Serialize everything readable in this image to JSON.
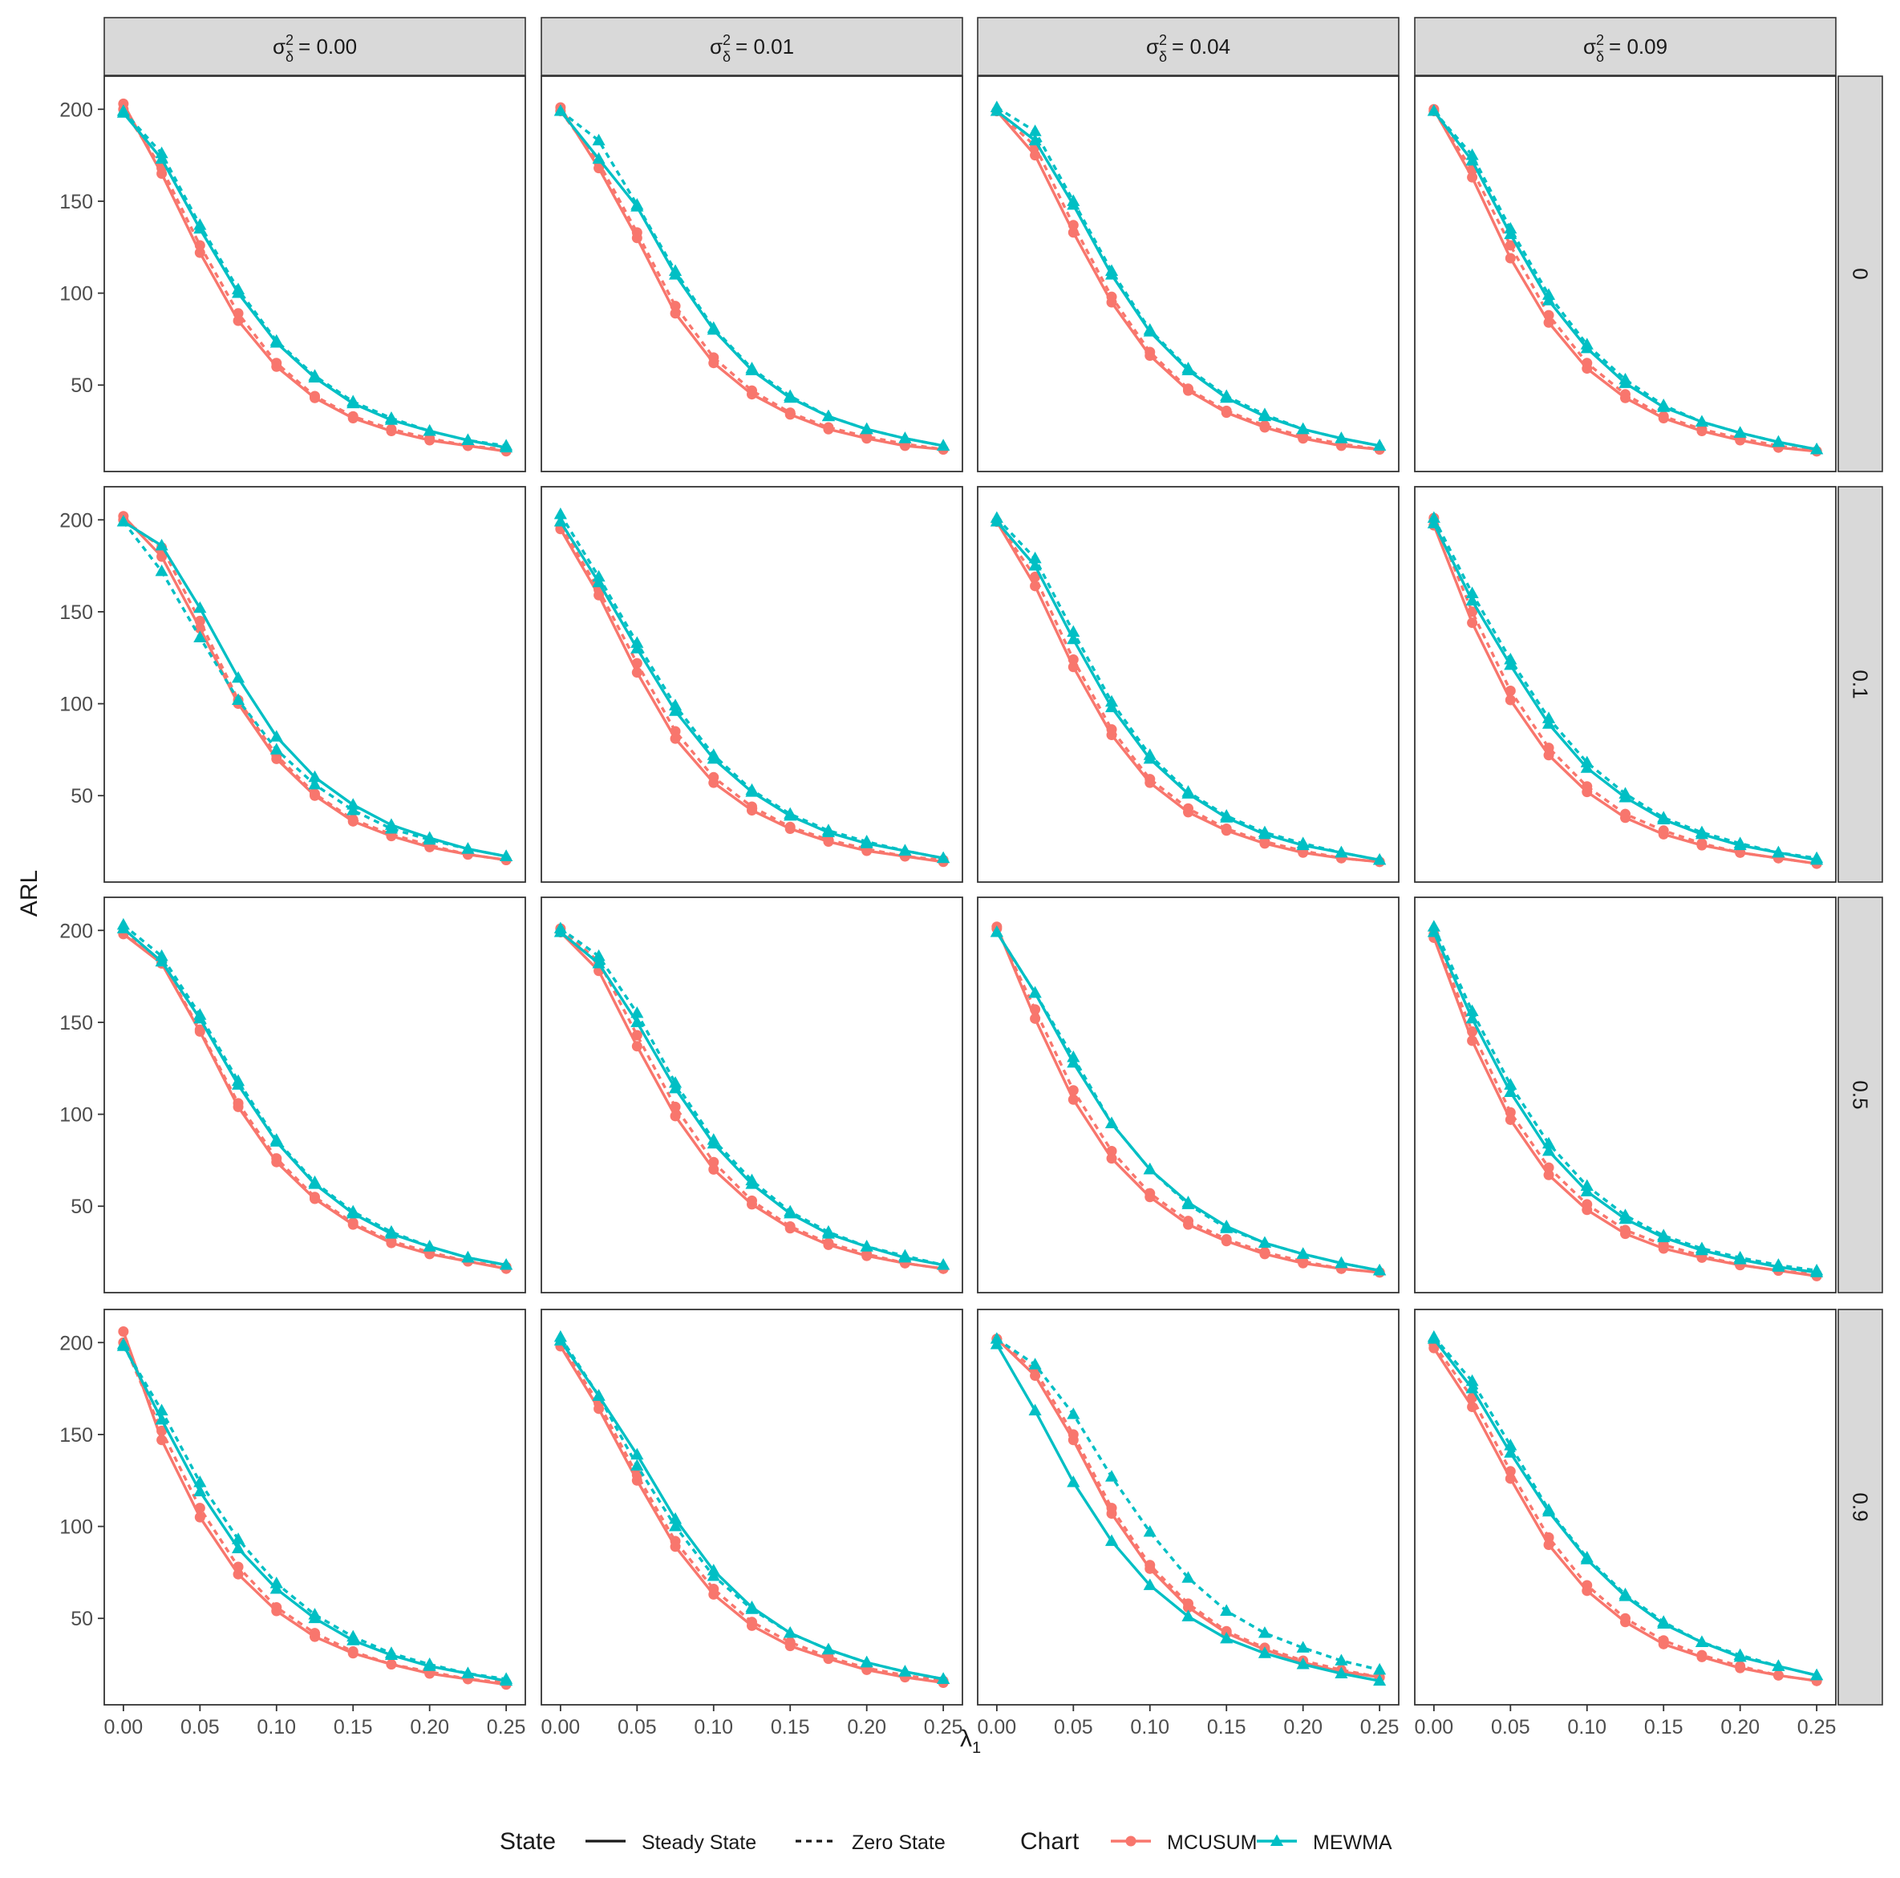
{
  "chart_data": {
    "type": "line",
    "facet_col_header_prefix": "σ",
    "facet_col_header_sup": "2",
    "facet_col_header_sub": "δ",
    "facet_col_values": [
      "= 0.00",
      "= 0.01",
      "= 0.04",
      "= 0.09"
    ],
    "facet_row_labels": [
      "0",
      "0.1",
      "0.5",
      "0.9"
    ],
    "x_values": [
      0,
      0.025,
      0.05,
      0.075,
      0.1,
      0.125,
      0.15,
      0.175,
      0.2,
      0.225,
      0.25
    ],
    "x_ticks": [
      0,
      0.05,
      0.1,
      0.15,
      0.2,
      0.25
    ],
    "x_tick_labels": [
      "0.00",
      "0.05",
      "0.10",
      "0.15",
      "0.20",
      "0.25"
    ],
    "y_ticks": [
      50,
      100,
      150,
      200
    ],
    "y_tick_labels": [
      "50",
      "100",
      "150",
      "200"
    ],
    "xlim": [
      -0.0125,
      0.2625
    ],
    "ylim": [
      3,
      218
    ],
    "xlabel_symbol": "λ",
    "xlabel_sub": "1",
    "ylabel": "ARL",
    "legend": {
      "state_title": "State",
      "state_items": [
        "Steady State",
        "Zero State"
      ],
      "chart_title": "Chart",
      "chart_items": [
        "MCUSUM",
        "MEWMA"
      ]
    },
    "colors": {
      "MCUSUM": "#F8766D",
      "MEWMA": "#00BFC4"
    },
    "panels": [
      [
        {
          "MCUSUM_steady": [
            203,
            165,
            122,
            85,
            60,
            43,
            32,
            25,
            20,
            17,
            14
          ],
          "MCUSUM_zero": [
            200,
            168,
            126,
            89,
            62,
            44,
            33,
            26,
            21,
            17,
            15
          ],
          "MEWMA_steady": [
            198,
            173,
            135,
            100,
            73,
            54,
            40,
            31,
            25,
            20,
            16
          ],
          "MEWMA_zero": [
            199,
            176,
            137,
            102,
            74,
            55,
            41,
            32,
            25,
            20,
            17
          ]
        },
        {
          "MCUSUM_steady": [
            201,
            168,
            130,
            89,
            62,
            45,
            34,
            26,
            21,
            17,
            15
          ],
          "MCUSUM_zero": [
            199,
            171,
            133,
            93,
            65,
            47,
            35,
            27,
            22,
            18,
            15
          ],
          "MEWMA_steady": [
            199,
            173,
            147,
            110,
            80,
            58,
            43,
            33,
            26,
            21,
            17
          ],
          "MEWMA_zero": [
            199,
            183,
            148,
            112,
            81,
            59,
            44,
            33,
            26,
            21,
            17
          ]
        },
        {
          "MCUSUM_steady": [
            199,
            175,
            133,
            95,
            66,
            47,
            35,
            27,
            21,
            17,
            15
          ],
          "MCUSUM_zero": [
            199,
            180,
            137,
            98,
            68,
            48,
            36,
            28,
            22,
            18,
            15
          ],
          "MEWMA_steady": [
            199,
            183,
            148,
            110,
            79,
            58,
            43,
            33,
            26,
            21,
            17
          ],
          "MEWMA_zero": [
            201,
            188,
            150,
            112,
            80,
            59,
            44,
            34,
            26,
            21,
            17
          ]
        },
        {
          "MCUSUM_steady": [
            200,
            163,
            119,
            84,
            59,
            43,
            32,
            25,
            20,
            16,
            14
          ],
          "MCUSUM_zero": [
            199,
            167,
            126,
            88,
            62,
            45,
            33,
            26,
            21,
            17,
            14
          ],
          "MEWMA_steady": [
            199,
            172,
            132,
            96,
            70,
            51,
            38,
            30,
            24,
            19,
            15
          ],
          "MEWMA_zero": [
            199,
            175,
            135,
            99,
            72,
            53,
            39,
            30,
            24,
            19,
            15
          ]
        }
      ],
      [
        {
          "MCUSUM_steady": [
            202,
            180,
            141,
            100,
            70,
            50,
            36,
            28,
            22,
            18,
            15
          ],
          "MCUSUM_zero": [
            200,
            185,
            145,
            102,
            72,
            51,
            37,
            29,
            23,
            18,
            15
          ],
          "MEWMA_steady": [
            199,
            186,
            152,
            114,
            82,
            60,
            45,
            34,
            27,
            21,
            17
          ],
          "MEWMA_zero": [
            199,
            172,
            136,
            102,
            75,
            56,
            42,
            32,
            26,
            21,
            17
          ]
        },
        {
          "MCUSUM_steady": [
            195,
            159,
            117,
            81,
            57,
            42,
            32,
            25,
            20,
            17,
            14
          ],
          "MCUSUM_zero": [
            197,
            162,
            122,
            85,
            60,
            44,
            33,
            26,
            21,
            17,
            15
          ],
          "MEWMA_steady": [
            199,
            166,
            130,
            96,
            70,
            52,
            39,
            30,
            24,
            20,
            16
          ],
          "MEWMA_zero": [
            203,
            169,
            133,
            99,
            72,
            53,
            40,
            31,
            25,
            20,
            16
          ]
        },
        {
          "MCUSUM_steady": [
            199,
            164,
            120,
            83,
            57,
            41,
            31,
            24,
            19,
            16,
            14
          ],
          "MCUSUM_zero": [
            199,
            169,
            124,
            86,
            59,
            43,
            32,
            25,
            20,
            16,
            14
          ],
          "MEWMA_steady": [
            199,
            175,
            135,
            98,
            70,
            51,
            38,
            29,
            23,
            19,
            15
          ],
          "MEWMA_zero": [
            201,
            179,
            139,
            101,
            72,
            52,
            39,
            30,
            24,
            19,
            15
          ]
        },
        {
          "MCUSUM_steady": [
            197,
            144,
            102,
            72,
            52,
            38,
            29,
            23,
            19,
            16,
            13
          ],
          "MCUSUM_zero": [
            201,
            150,
            107,
            76,
            55,
            40,
            31,
            24,
            19,
            16,
            13
          ],
          "MEWMA_steady": [
            198,
            156,
            121,
            89,
            65,
            49,
            37,
            29,
            23,
            19,
            15
          ],
          "MEWMA_zero": [
            201,
            160,
            124,
            92,
            68,
            51,
            38,
            30,
            24,
            19,
            16
          ]
        }
      ],
      [
        {
          "MCUSUM_steady": [
            198,
            182,
            145,
            104,
            74,
            54,
            40,
            30,
            24,
            20,
            16
          ],
          "MCUSUM_zero": [
            199,
            183,
            146,
            106,
            76,
            55,
            41,
            31,
            25,
            20,
            17
          ],
          "MEWMA_steady": [
            201,
            183,
            152,
            116,
            85,
            62,
            46,
            35,
            28,
            22,
            18
          ],
          "MEWMA_zero": [
            203,
            186,
            154,
            118,
            86,
            63,
            47,
            36,
            28,
            22,
            18
          ]
        },
        {
          "MCUSUM_steady": [
            199,
            178,
            137,
            99,
            70,
            51,
            38,
            29,
            23,
            19,
            16
          ],
          "MCUSUM_zero": [
            201,
            183,
            143,
            104,
            74,
            53,
            39,
            30,
            24,
            19,
            16
          ],
          "MEWMA_steady": [
            199,
            182,
            150,
            114,
            84,
            62,
            46,
            35,
            28,
            22,
            18
          ],
          "MEWMA_zero": [
            201,
            186,
            155,
            117,
            86,
            64,
            47,
            36,
            28,
            23,
            18
          ]
        },
        {
          "MCUSUM_steady": [
            202,
            152,
            108,
            76,
            55,
            40,
            31,
            24,
            19,
            16,
            14
          ],
          "MCUSUM_zero": [
            201,
            157,
            113,
            80,
            57,
            42,
            32,
            25,
            20,
            16,
            14
          ],
          "MEWMA_steady": [
            199,
            166,
            128,
            95,
            70,
            52,
            39,
            30,
            24,
            19,
            15
          ],
          "MEWMA_zero": [
            199,
            166,
            131,
            95,
            70,
            51,
            38,
            30,
            24,
            19,
            15
          ]
        },
        {
          "MCUSUM_steady": [
            196,
            140,
            97,
            67,
            48,
            35,
            27,
            22,
            18,
            15,
            12
          ],
          "MCUSUM_zero": [
            198,
            145,
            101,
            71,
            51,
            37,
            29,
            23,
            18,
            15,
            13
          ],
          "MEWMA_steady": [
            199,
            152,
            112,
            80,
            58,
            43,
            33,
            26,
            21,
            17,
            14
          ],
          "MEWMA_zero": [
            202,
            156,
            116,
            84,
            61,
            45,
            34,
            27,
            22,
            18,
            15
          ]
        }
      ],
      [
        {
          "MCUSUM_steady": [
            206,
            147,
            105,
            74,
            54,
            40,
            31,
            25,
            20,
            17,
            14
          ],
          "MCUSUM_zero": [
            200,
            152,
            110,
            78,
            56,
            42,
            32,
            25,
            21,
            17,
            15
          ],
          "MEWMA_steady": [
            199,
            158,
            119,
            88,
            66,
            50,
            38,
            30,
            24,
            20,
            16
          ],
          "MEWMA_zero": [
            198,
            163,
            124,
            93,
            69,
            52,
            40,
            31,
            25,
            20,
            17
          ]
        },
        {
          "MCUSUM_steady": [
            198,
            164,
            125,
            89,
            63,
            46,
            35,
            28,
            22,
            18,
            15
          ],
          "MCUSUM_zero": [
            199,
            167,
            128,
            92,
            66,
            48,
            37,
            29,
            23,
            19,
            16
          ],
          "MEWMA_steady": [
            201,
            171,
            139,
            104,
            76,
            56,
            42,
            33,
            26,
            21,
            17
          ],
          "MEWMA_zero": [
            203,
            171,
            133,
            100,
            73,
            55,
            42,
            33,
            26,
            21,
            17
          ]
        },
        {
          "MCUSUM_steady": [
            202,
            182,
            147,
            107,
            77,
            56,
            42,
            33,
            26,
            21,
            18
          ],
          "MCUSUM_zero": [
            202,
            185,
            150,
            110,
            79,
            58,
            43,
            34,
            27,
            22,
            18
          ],
          "MEWMA_steady": [
            199,
            163,
            124,
            92,
            68,
            51,
            39,
            31,
            25,
            20,
            16
          ],
          "MEWMA_zero": [
            202,
            188,
            161,
            127,
            97,
            72,
            54,
            42,
            34,
            27,
            22
          ]
        },
        {
          "MCUSUM_steady": [
            197,
            165,
            126,
            90,
            65,
            48,
            36,
            29,
            23,
            19,
            16
          ],
          "MCUSUM_zero": [
            199,
            170,
            130,
            94,
            68,
            50,
            38,
            30,
            24,
            19,
            16
          ],
          "MEWMA_steady": [
            202,
            175,
            140,
            108,
            82,
            62,
            47,
            37,
            29,
            24,
            19
          ],
          "MEWMA_zero": [
            203,
            179,
            144,
            109,
            83,
            63,
            48,
            37,
            30,
            24,
            19
          ]
        }
      ]
    ]
  }
}
